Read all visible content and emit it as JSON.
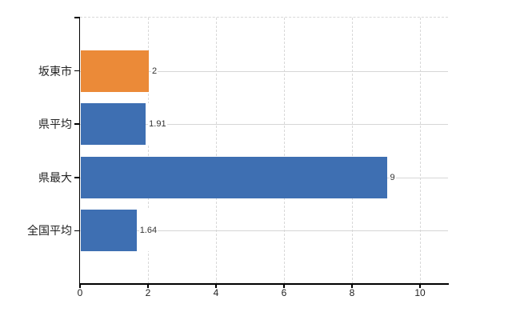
{
  "chart_data": {
    "type": "bar",
    "orientation": "horizontal",
    "title": "",
    "categories": [
      "坂東市",
      "県平均",
      "県最大",
      "全国平均"
    ],
    "values": [
      2,
      1.91,
      9,
      1.64
    ],
    "value_labels": [
      "2",
      "1.91",
      "9",
      "1.64"
    ],
    "bar_colors": [
      "#EB8A38",
      "#3E6FB2",
      "#3E6FB2",
      "#3E6FB2"
    ],
    "x_ticks": [
      0,
      2,
      4,
      6,
      8,
      10
    ],
    "x_tick_labels": [
      "0",
      "2",
      "4",
      "6",
      "8",
      "10"
    ],
    "xlim": [
      0,
      10.8
    ],
    "grid": "on",
    "legend": "none"
  },
  "colors": {
    "bar_orange": "#EB8A38",
    "bar_blue": "#3E6FB2",
    "axis": "#000000",
    "gridline": "#D6D6D6",
    "background": "#FFFFFF",
    "text": "#222222"
  }
}
